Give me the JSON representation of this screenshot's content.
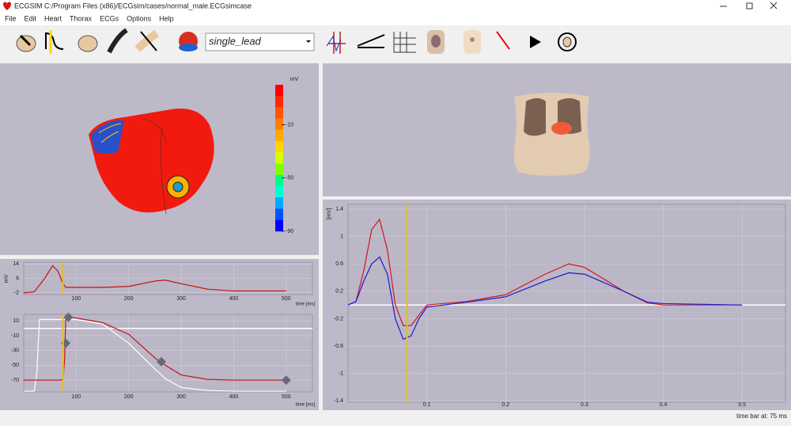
{
  "window": {
    "title": "ECGSIM  C:/Program Files (x86)/ECGsim/cases/normal_male.ECGsimcase"
  },
  "menu": [
    "File",
    "Edit",
    "Heart",
    "Thorax",
    "ECGs",
    "Options",
    "Help"
  ],
  "toolbar": {
    "dropdown": "single_lead"
  },
  "colorbar": {
    "label": "mV",
    "lim": [
      -90,
      20
    ],
    "ticks": [
      -10,
      -50,
      -90
    ],
    "colors": [
      "#ff0000",
      "#ff2a00",
      "#ff5500",
      "#ff8000",
      "#ffaa00",
      "#ffd500",
      "#d4ff00",
      "#80ff00",
      "#00ff80",
      "#00ffd5",
      "#00aaff",
      "#0055ff",
      "#0000ff"
    ]
  },
  "status": "time bar at: 75 ms",
  "chart_data": [
    {
      "type": "line",
      "ylabel": "mV",
      "xlabel": "time [ms]",
      "xlim": [
        0,
        550
      ],
      "ylim": [
        -3,
        15
      ],
      "xticks": [
        100,
        200,
        300,
        400,
        500
      ],
      "yticks": [
        14,
        6,
        -2
      ],
      "marker": 75,
      "grid": true,
      "x": [
        0,
        20,
        40,
        55,
        65,
        75,
        80,
        100,
        150,
        200,
        250,
        270,
        300,
        350,
        400,
        500
      ],
      "series": [
        {
          "color": "#c81010",
          "values": [
            -2,
            -1.5,
            6,
            13,
            10,
            3,
            1,
            1,
            1,
            1.5,
            4.5,
            5,
            3,
            0,
            -1,
            -1
          ]
        }
      ]
    },
    {
      "type": "line",
      "xlabel": "time [ms]",
      "xlim": [
        0,
        550
      ],
      "ylim": [
        -86,
        19
      ],
      "xticks": [
        100,
        200,
        300,
        400,
        500
      ],
      "yticks": [
        10,
        -10,
        -30,
        -50,
        -70
      ],
      "marker": 75,
      "grid": true,
      "baseline": 0,
      "x": [
        0,
        20,
        25,
        30,
        60,
        70,
        75,
        78,
        80,
        85,
        100,
        150,
        200,
        250,
        270,
        300,
        350,
        400,
        500
      ],
      "series": [
        {
          "color": "#ffffff",
          "values": [
            -85,
            -85,
            -60,
            12,
            12,
            12,
            12,
            12,
            12,
            12,
            12,
            6,
            -20,
            -55,
            -68,
            -80,
            -84,
            -85,
            -85
          ]
        },
        {
          "color": "#c81010",
          "values": [
            -70,
            -70,
            -70,
            -70,
            -70,
            -70,
            -69,
            -40,
            12,
            16,
            14,
            8,
            -8,
            -40,
            -50,
            -63,
            -69,
            -70,
            -70
          ]
        }
      ],
      "handles": {
        "x": [
          85,
          80,
          262,
          500
        ],
        "values": [
          15,
          -20,
          -45,
          -70
        ]
      }
    },
    {
      "type": "line",
      "ylabel": "[mV]",
      "xlim": [
        0,
        0.555
      ],
      "ylim": [
        -1.42,
        1.47
      ],
      "xticks": [
        0.1,
        0.2,
        0.3,
        0.4,
        0.5
      ],
      "yticks": [
        1.4,
        1,
        0.6,
        0.2,
        -0.2,
        -0.6,
        -1,
        -1.4
      ],
      "marker": 0.075,
      "grid": true,
      "baseline": 0,
      "x": [
        0,
        0.01,
        0.02,
        0.03,
        0.04,
        0.05,
        0.06,
        0.07,
        0.08,
        0.09,
        0.1,
        0.15,
        0.2,
        0.25,
        0.28,
        0.3,
        0.35,
        0.38,
        0.4,
        0.45,
        0.5
      ],
      "series": [
        {
          "color": "#d01818",
          "values": [
            0,
            0.05,
            0.5,
            1.1,
            1.25,
            0.8,
            0,
            -0.3,
            -0.3,
            -0.15,
            0,
            0.05,
            0.15,
            0.45,
            0.6,
            0.55,
            0.2,
            0.03,
            0,
            0,
            0
          ]
        },
        {
          "color": "#1a1ad0",
          "values": [
            0,
            0.05,
            0.35,
            0.6,
            0.7,
            0.45,
            -0.2,
            -0.5,
            -0.45,
            -0.2,
            -0.03,
            0.04,
            0.12,
            0.35,
            0.47,
            0.45,
            0.2,
            0.04,
            0.02,
            0.01,
            0
          ]
        }
      ]
    }
  ]
}
